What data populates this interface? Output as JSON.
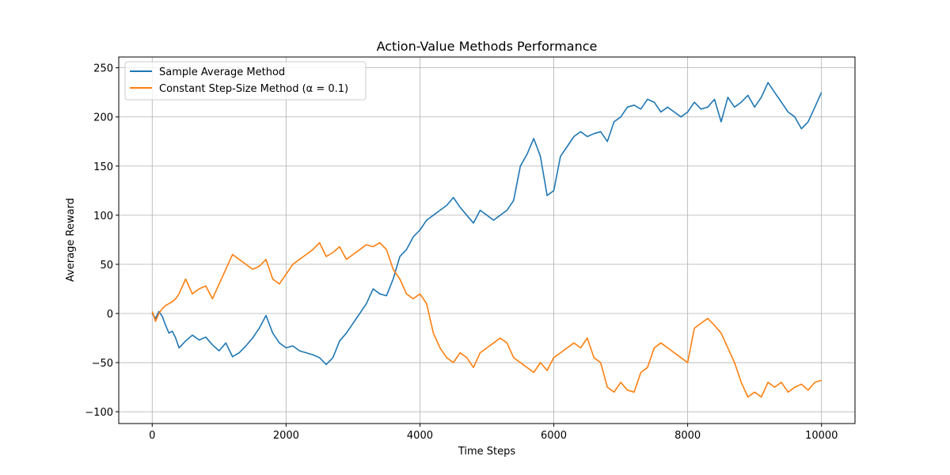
{
  "chart_data": {
    "type": "line",
    "title": "Action-Value Methods Performance",
    "xlabel": "Time Steps",
    "ylabel": "Average Reward",
    "xlim": [
      -500,
      10500
    ],
    "ylim": [
      -112,
      261
    ],
    "xticks": [
      0,
      2000,
      4000,
      6000,
      8000,
      10000
    ],
    "xtick_labels": [
      "0",
      "2000",
      "4000",
      "6000",
      "8000",
      "10000"
    ],
    "yticks": [
      -100,
      -50,
      0,
      50,
      100,
      150,
      200,
      250
    ],
    "ytick_labels": [
      "−100",
      "−50",
      "0",
      "50",
      "100",
      "150",
      "200",
      "250"
    ],
    "grid": true,
    "legend_position": "upper-left",
    "series": [
      {
        "name": "Sample Average Method",
        "color": "#1f77b4",
        "x": [
          0,
          50,
          100,
          150,
          200,
          250,
          300,
          350,
          400,
          500,
          600,
          700,
          800,
          900,
          1000,
          1100,
          1200,
          1300,
          1400,
          1500,
          1600,
          1700,
          1800,
          1900,
          2000,
          2100,
          2200,
          2300,
          2400,
          2500,
          2600,
          2700,
          2800,
          2900,
          3000,
          3100,
          3200,
          3300,
          3400,
          3500,
          3600,
          3700,
          3800,
          3900,
          4000,
          4100,
          4200,
          4300,
          4400,
          4500,
          4600,
          4700,
          4800,
          4900,
          5000,
          5100,
          5200,
          5300,
          5400,
          5500,
          5600,
          5700,
          5800,
          5900,
          6000,
          6100,
          6200,
          6300,
          6400,
          6500,
          6600,
          6700,
          6800,
          6900,
          7000,
          7100,
          7200,
          7300,
          7400,
          7500,
          7600,
          7700,
          7800,
          7900,
          8000,
          8100,
          8200,
          8300,
          8400,
          8500,
          8600,
          8700,
          8800,
          8900,
          9000,
          9100,
          9200,
          9300,
          9400,
          9500,
          9600,
          9700,
          9800,
          9900,
          10000
        ],
        "values": [
          0,
          -5,
          2,
          -3,
          -12,
          -20,
          -18,
          -25,
          -35,
          -28,
          -22,
          -27,
          -24,
          -32,
          -38,
          -30,
          -44,
          -40,
          -33,
          -25,
          -15,
          -2,
          -20,
          -30,
          -35,
          -33,
          -38,
          -40,
          -42,
          -45,
          -52,
          -45,
          -28,
          -20,
          -10,
          0,
          10,
          25,
          20,
          18,
          35,
          58,
          65,
          78,
          85,
          95,
          100,
          105,
          110,
          118,
          108,
          100,
          92,
          105,
          100,
          95,
          100,
          105,
          115,
          150,
          162,
          178,
          160,
          120,
          125,
          160,
          170,
          180,
          185,
          180,
          183,
          185,
          175,
          195,
          200,
          210,
          212,
          208,
          218,
          215,
          205,
          210,
          205,
          200,
          205,
          215,
          208,
          210,
          218,
          195,
          220,
          210,
          215,
          222,
          210,
          220,
          235,
          225,
          215,
          205,
          200,
          188,
          195,
          210,
          225
        ]
      },
      {
        "name": "Constant Step-Size Method (α = 0.1)",
        "color": "#ff7f0e",
        "x": [
          0,
          50,
          100,
          150,
          200,
          250,
          300,
          350,
          400,
          500,
          600,
          700,
          800,
          900,
          1000,
          1100,
          1200,
          1300,
          1400,
          1500,
          1600,
          1700,
          1800,
          1900,
          2000,
          2100,
          2200,
          2300,
          2400,
          2500,
          2600,
          2700,
          2800,
          2900,
          3000,
          3100,
          3200,
          3300,
          3400,
          3500,
          3600,
          3700,
          3800,
          3900,
          4000,
          4100,
          4200,
          4300,
          4400,
          4500,
          4600,
          4700,
          4800,
          4900,
          5000,
          5100,
          5200,
          5300,
          5400,
          5500,
          5600,
          5700,
          5800,
          5900,
          6000,
          6100,
          6200,
          6300,
          6400,
          6500,
          6600,
          6700,
          6800,
          6900,
          7000,
          7100,
          7200,
          7300,
          7400,
          7500,
          7600,
          7700,
          7800,
          7900,
          8000,
          8100,
          8200,
          8300,
          8400,
          8500,
          8600,
          8700,
          8800,
          8900,
          9000,
          9100,
          9200,
          9300,
          9400,
          9500,
          9600,
          9700,
          9800,
          9900,
          10000
        ],
        "values": [
          2,
          -8,
          0,
          5,
          8,
          10,
          12,
          15,
          20,
          35,
          20,
          25,
          28,
          15,
          30,
          45,
          60,
          55,
          50,
          45,
          48,
          55,
          35,
          30,
          40,
          50,
          55,
          60,
          65,
          72,
          58,
          62,
          68,
          55,
          60,
          65,
          70,
          68,
          72,
          65,
          45,
          35,
          20,
          15,
          20,
          10,
          -20,
          -35,
          -45,
          -50,
          -40,
          -45,
          -55,
          -40,
          -35,
          -30,
          -25,
          -30,
          -45,
          -50,
          -55,
          -60,
          -50,
          -58,
          -45,
          -40,
          -35,
          -30,
          -35,
          -25,
          -45,
          -50,
          -75,
          -80,
          -70,
          -78,
          -80,
          -60,
          -55,
          -35,
          -30,
          -35,
          -40,
          -45,
          -50,
          -15,
          -10,
          -5,
          -12,
          -20,
          -35,
          -50,
          -70,
          -85,
          -80,
          -85,
          -70,
          -75,
          -70,
          -80,
          -75,
          -72,
          -78,
          -70,
          -68
        ]
      }
    ]
  }
}
